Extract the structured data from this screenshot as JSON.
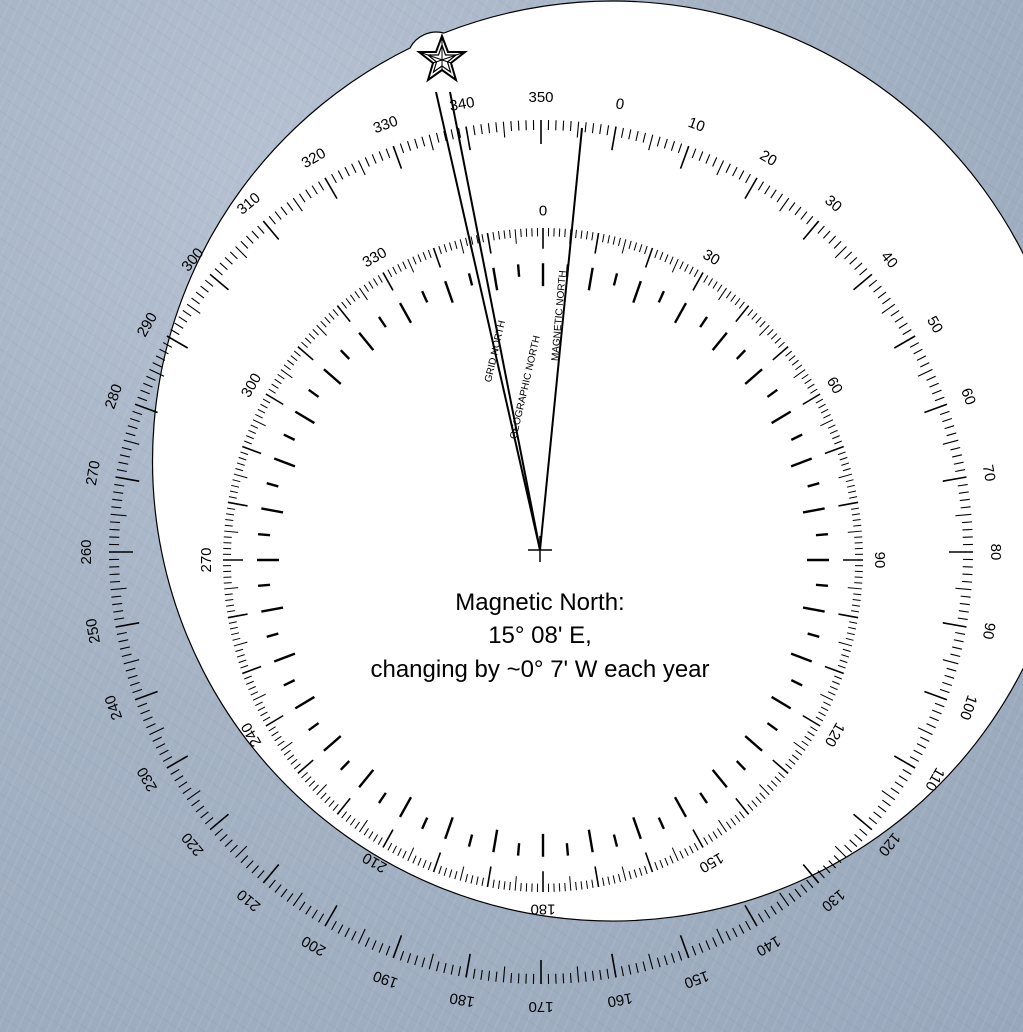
{
  "caption": {
    "line1": "Magnetic North:",
    "line2": "15° 08' E,",
    "line3": "changing by ~0° 7' W each year"
  },
  "north_labels": {
    "grid": "GRID NORTH",
    "geographic": "GEOGRAPHIC NORTH",
    "magnetic": "MAGNETIC NORTH"
  },
  "outer_scale_labels": [
    "0",
    "10",
    "20",
    "30",
    "40",
    "50",
    "60",
    "70",
    "80",
    "90",
    "100",
    "110",
    "120",
    "130",
    "140",
    "150",
    "160",
    "170",
    "180",
    "190",
    "200",
    "210",
    "220",
    "230",
    "240",
    "250",
    "260",
    "270",
    "280",
    "290",
    "300",
    "310",
    "320",
    "330",
    "340",
    "350"
  ],
  "inner_scale_labels": [
    "0",
    "30",
    "60",
    "90",
    "120",
    "150",
    "180",
    "210",
    "240",
    "270",
    "300",
    "330"
  ],
  "north_symbol": "star-icon",
  "colors": {
    "disc": "#ffffff",
    "ink": "#000000",
    "background": "#a4b2c4"
  }
}
